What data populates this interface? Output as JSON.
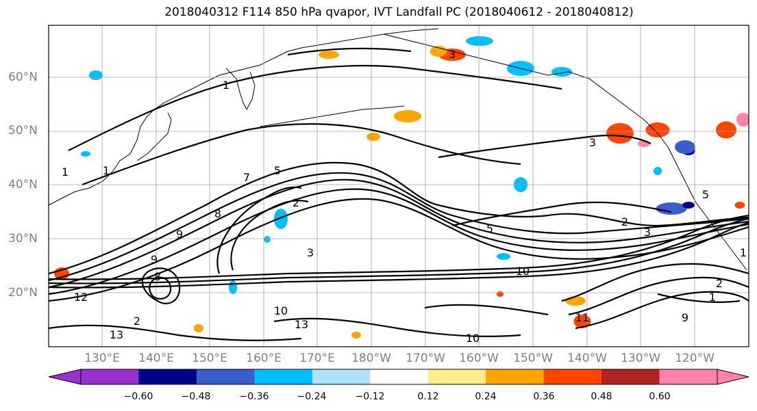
{
  "title": "2018040312 F114 850 hPa qvapor, IVT Landfall PC (2018040612 - 2018040812)",
  "latitude_labels": [
    "60°N",
    "50°N",
    "40°N",
    "30°N",
    "20°N"
  ],
  "longitude_labels": [
    "130°E",
    "140°E",
    "150°E",
    "160°E",
    "170°E",
    "180°W",
    "170°W",
    "160°W",
    "150°W",
    "140°W",
    "130°W",
    "120°W"
  ],
  "colorbar": {
    "tick_labels": [
      "−0.60",
      "−0.48",
      "−0.36",
      "−0.24",
      "−0.12",
      "0.12",
      "0.24",
      "0.36",
      "0.48",
      "0.60"
    ],
    "colors": [
      "#9932cc",
      "#00008b",
      "#3a5fcd",
      "#00bfff",
      "#b0e2ff",
      "#ffffff",
      "#ffec8b",
      "#ffa500",
      "#ff4500",
      "#b22222",
      "#ff82ab"
    ]
  },
  "contour_labels": [
    "1",
    "1",
    "1",
    "1",
    "2",
    "2",
    "2",
    "3",
    "3",
    "3",
    "5",
    "5",
    "7",
    "8",
    "9",
    "9",
    "10",
    "10",
    "10",
    "11",
    "12",
    "13",
    "13",
    "2",
    "1",
    "3",
    "5",
    "8",
    "9"
  ]
}
